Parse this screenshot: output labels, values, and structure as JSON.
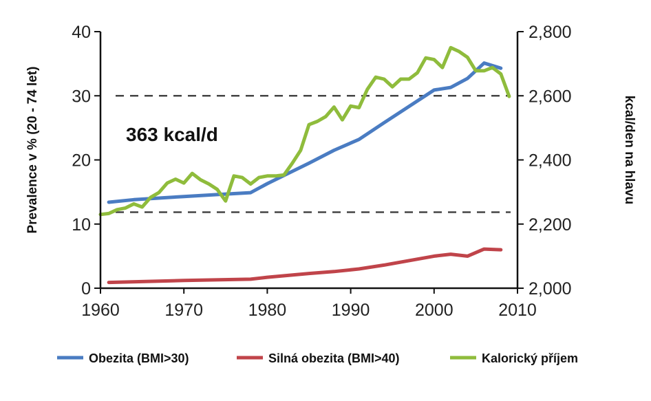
{
  "chart_data": {
    "type": "line",
    "x_range": [
      1960,
      2010
    ],
    "x_ticks": [
      "1960",
      "1970",
      "1980",
      "1990",
      "2000",
      "2010"
    ],
    "y_left": {
      "label": "Prevalence v % (20 - 74 let)",
      "range": [
        0,
        40
      ],
      "ticks": [
        "0",
        "10",
        "20",
        "30",
        "40"
      ]
    },
    "y_right": {
      "label": "kcal/den na hlavu",
      "range": [
        2000,
        2800
      ],
      "ticks": [
        "2,000",
        "2,200",
        "2,400",
        "2,600",
        "2,800"
      ]
    },
    "reference_lines": [
      {
        "axis": "right",
        "value": 2600,
        "style": "dashed"
      },
      {
        "axis": "right",
        "value": 2237,
        "style": "dashed"
      }
    ],
    "annotation": "363 kcal/d",
    "legend_position": "bottom",
    "series": [
      {
        "name": "Obezita (BMI>30)",
        "axis": "left",
        "color": "#4a7cc2",
        "points": [
          [
            1961,
            13.4
          ],
          [
            1964,
            13.8
          ],
          [
            1970,
            14.3
          ],
          [
            1974,
            14.6
          ],
          [
            1978,
            14.9
          ],
          [
            1980,
            16.3
          ],
          [
            1985,
            19.5
          ],
          [
            1988,
            21.5
          ],
          [
            1991,
            23.2
          ],
          [
            1994,
            25.8
          ],
          [
            2000,
            30.9
          ],
          [
            2002,
            31.3
          ],
          [
            2004,
            32.7
          ],
          [
            2006,
            35.1
          ],
          [
            2008,
            34.3
          ]
        ]
      },
      {
        "name": "Silná obezita (BMI>40)",
        "axis": "left",
        "color": "#c0444a",
        "points": [
          [
            1961,
            0.9
          ],
          [
            1970,
            1.2
          ],
          [
            1978,
            1.4
          ],
          [
            1980,
            1.7
          ],
          [
            1985,
            2.3
          ],
          [
            1988,
            2.6
          ],
          [
            1991,
            3.0
          ],
          [
            1994,
            3.6
          ],
          [
            2000,
            5.0
          ],
          [
            2002,
            5.3
          ],
          [
            2004,
            5.0
          ],
          [
            2006,
            6.1
          ],
          [
            2008,
            6.0
          ]
        ]
      },
      {
        "name": "Kalorický příjem",
        "axis": "right",
        "color": "#8fbc3c",
        "points": [
          [
            1960,
            2230
          ],
          [
            1961,
            2233
          ],
          [
            1962,
            2245
          ],
          [
            1963,
            2250
          ],
          [
            1964,
            2263
          ],
          [
            1965,
            2253
          ],
          [
            1966,
            2283
          ],
          [
            1967,
            2298
          ],
          [
            1968,
            2328
          ],
          [
            1969,
            2340
          ],
          [
            1970,
            2328
          ],
          [
            1971,
            2358
          ],
          [
            1972,
            2338
          ],
          [
            1973,
            2325
          ],
          [
            1974,
            2308
          ],
          [
            1975,
            2272
          ],
          [
            1976,
            2350
          ],
          [
            1977,
            2345
          ],
          [
            1978,
            2325
          ],
          [
            1979,
            2345
          ],
          [
            1980,
            2350
          ],
          [
            1981,
            2350
          ],
          [
            1982,
            2353
          ],
          [
            1983,
            2390
          ],
          [
            1984,
            2430
          ],
          [
            1985,
            2510
          ],
          [
            1986,
            2520
          ],
          [
            1987,
            2535
          ],
          [
            1988,
            2565
          ],
          [
            1989,
            2525
          ],
          [
            1990,
            2568
          ],
          [
            1991,
            2563
          ],
          [
            1992,
            2620
          ],
          [
            1993,
            2658
          ],
          [
            1994,
            2652
          ],
          [
            1995,
            2628
          ],
          [
            1996,
            2652
          ],
          [
            1997,
            2652
          ],
          [
            1998,
            2672
          ],
          [
            1999,
            2718
          ],
          [
            2000,
            2713
          ],
          [
            2001,
            2688
          ],
          [
            2002,
            2750
          ],
          [
            2003,
            2738
          ],
          [
            2004,
            2720
          ],
          [
            2005,
            2678
          ],
          [
            2006,
            2678
          ],
          [
            2007,
            2688
          ],
          [
            2008,
            2668
          ],
          [
            2009,
            2598
          ]
        ]
      }
    ]
  }
}
